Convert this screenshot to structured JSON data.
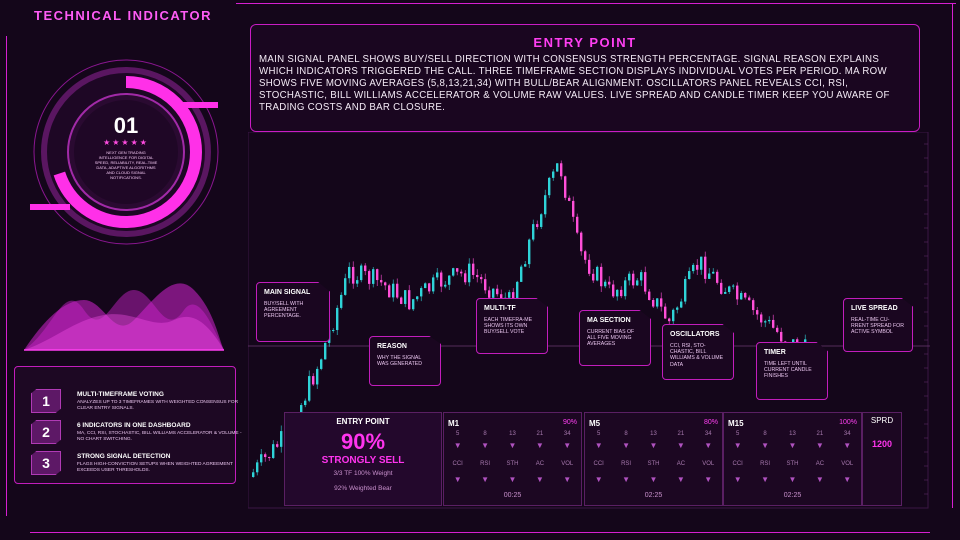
{
  "app_title": "TECHNICAL INDICATOR",
  "colors": {
    "accent": "#ff3ff2",
    "frame": "#d61fd1",
    "bull": "#2fd3d8",
    "bear": "#ff4fd8",
    "background": "#14061a"
  },
  "dial": {
    "number": "01",
    "stars": "★★★★★",
    "subtitle": "NEXT GEN TRADING INTELLIGENCE FOR DIGITAL SPEED, RELIABILITY, REAL-TIME DATA, ADAPTIVE ALGORITHMS AND CLOUD SIGNAL NOTIFICATIONS.",
    "progress": 0.7
  },
  "features": [
    {
      "num": "1",
      "title": "MULTI-TIMEFRAME VOTING",
      "desc": "ANALYZES UP TO 3 TIMEFRAMES WITH WEIGHTED CONSENSUS FOR CLEAR ENTRY SIGNALS."
    },
    {
      "num": "2",
      "title": "6 INDICATORS IN ONE DASHBOARD",
      "desc": "MA, CCI, RSI, STOCHASTIC, BILL WILLIAMS ACCELERATOR & VOLUME - NO CHART SWITCHING."
    },
    {
      "num": "3",
      "title": "STRONG SIGNAL DETECTION",
      "desc": "FLAGS HIGH-CONVICTION SETUPS WHEN WEIGHTED AGREEMENT EXCEEDS USER THRESHOLDS."
    }
  ],
  "header": {
    "title": "ENTRY POINT",
    "text": "Main signal panel shows buy/sell direction with consensus strength percentage. Signal reason explains which indicators triggered the call. Three timeframe section displays individual votes per period. MA row shows five moving averages (5,8,13,21,34) with bull/bear alignment. Oscillators panel reveals CCI, RSI, Stochastic, Bill Williams Accelerator & Volume raw values. Live spread and candle timer keep you aware of trading costs and bar closure."
  },
  "callouts": {
    "main_signal": {
      "title": "MAIN SIGNAL",
      "text": "BUY/SELL WITH AGREEMENT PERCENTAGE."
    },
    "reason": {
      "title": "REASON",
      "text": "WHY THE SIGNAL WAS GENERATED"
    },
    "multi_tf": {
      "title": "MULTI-TF",
      "text": "EACH TIMEFRA-ME SHOWS ITS OWN BUY/SELL VOTE"
    },
    "ma_section": {
      "title": "MA SECTION",
      "text": "CURRENT BIAS OF ALL FIVE MOVING AVERAGES"
    },
    "oscillators": {
      "title": "OSCILLATORS",
      "text": "CCI, RSI, STO-CHASTIC, BILL WILLIAMS & VOLUME DATA"
    },
    "timer": {
      "title": "TIMER",
      "text": "TIME LEFT UNTIL CURRENT CANDLE FINISHES"
    },
    "live_spread": {
      "title": "LIVE SPREAD",
      "text": "REAL-TIME CU-RRENT SPREAD FOR ACTIVE SYMBOL"
    }
  },
  "signal_panel": {
    "title": "ENTRY POINT",
    "percent": "90%",
    "direction": "STRONGLY SELL",
    "tf_info": "3/3 TF 100% Weight",
    "weighted": "92% Weighted Bear"
  },
  "timeframes": [
    {
      "name": "M1",
      "percent": "90%",
      "ma": [
        "5",
        "8",
        "13",
        "21",
        "34"
      ],
      "osc": [
        "CCI",
        "RSI",
        "STH",
        "AC",
        "VOL"
      ],
      "timer": "00:25"
    },
    {
      "name": "M5",
      "percent": "80%",
      "ma": [
        "5",
        "8",
        "13",
        "21",
        "34"
      ],
      "osc": [
        "CCI",
        "RSI",
        "STH",
        "AC",
        "VOL"
      ],
      "timer": "02:25"
    },
    {
      "name": "M15",
      "percent": "100%",
      "ma": [
        "5",
        "8",
        "13",
        "21",
        "34"
      ],
      "osc": [
        "CCI",
        "RSI",
        "STH",
        "AC",
        "VOL"
      ],
      "timer": "02:25"
    }
  ],
  "spread": {
    "label": "SPRD",
    "value": "1200"
  }
}
